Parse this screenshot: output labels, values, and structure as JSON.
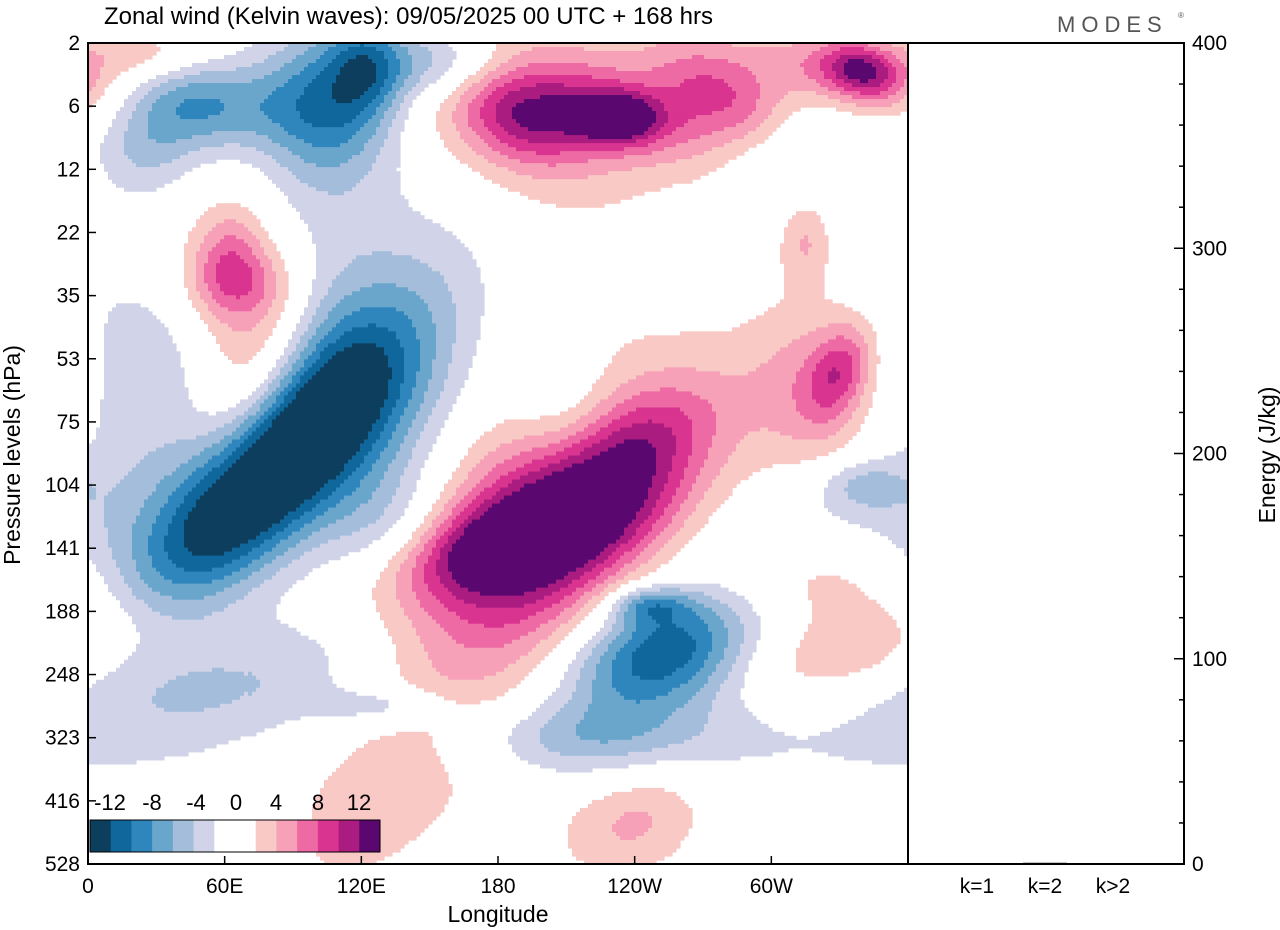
{
  "chart_data": {
    "type": "heatmap",
    "title": "Zonal wind (Kelvin waves):  09/05/2025  00 UTC  + 168 hrs",
    "brand": "MODES",
    "xlabel": "Longitude",
    "ylabel": "Pressure levels (hPa)",
    "y2label": "Energy (J/kg)",
    "x_ticks": [
      "0",
      "60E",
      "120E",
      "180",
      "120W",
      "60W"
    ],
    "y_ticks": [
      "2",
      "6",
      "12",
      "22",
      "35",
      "53",
      "75",
      "104",
      "141",
      "188",
      "248",
      "323",
      "416",
      "528"
    ],
    "y2_range": [
      0,
      400
    ],
    "y2_ticks": [
      "0",
      "100",
      "200",
      "300",
      "400"
    ],
    "bar_categories": [
      "k=1",
      "k=2",
      "k>2"
    ],
    "bar_values": [
      0.3,
      0.6,
      0.4
    ],
    "colorbar": {
      "labels": [
        "-12",
        "-8",
        "-4",
        "0",
        "4",
        "8",
        "12"
      ],
      "colors": [
        "#0d3e5e",
        "#0f679c",
        "#2e86bd",
        "#6aa6cc",
        "#a4bddb",
        "#d1d4e8",
        "#ffffff",
        "#ffffff",
        "#f9c9c6",
        "#f7a1b8",
        "#ee6aa4",
        "#d9348f",
        "#aa1c7f",
        "#5a0870"
      ]
    },
    "blobs": [
      {
        "lon": 80,
        "lev": 6.8,
        "rx": 15,
        "ry": 2.3,
        "rot": 55,
        "amp": -14
      },
      {
        "lon": 80,
        "lev": 6.0,
        "rx": 30,
        "ry": 4,
        "rot": 55,
        "amp": -5
      },
      {
        "lon": 76,
        "lev": 10.2,
        "rx": 14,
        "ry": 3,
        "rot": 80,
        "amp": -4
      },
      {
        "lon": 70,
        "lev": 5.4,
        "rx": 18,
        "ry": 1.2,
        "rot": 40,
        "amp": 9
      },
      {
        "lon": 95,
        "lev": 5.3,
        "rx": 65,
        "ry": 1.2,
        "rot": 12,
        "amp": -5
      },
      {
        "lon": 180,
        "lev": 9.4,
        "rx": 28,
        "ry": 4,
        "rot": 50,
        "amp": 5
      },
      {
        "lon": 190,
        "lev": 7.3,
        "rx": 36,
        "ry": 2,
        "rot": 30,
        "amp": 5
      },
      {
        "lon": 205,
        "lev": 7.8,
        "rx": 20,
        "ry": 2.5,
        "rot": 70,
        "amp": 7
      },
      {
        "lon": 188,
        "lev": 7.9,
        "rx": 9,
        "ry": 2,
        "rot": 80,
        "amp": 7
      },
      {
        "lon": 237,
        "lev": 6.5,
        "rx": 12,
        "ry": 1.5,
        "rot": 70,
        "amp": 6
      },
      {
        "lon": 213,
        "lev": 11,
        "rx": 8,
        "ry": 2,
        "rot": 90,
        "amp": -4
      },
      {
        "lon": 250,
        "lev": 9.4,
        "rx": 28,
        "ry": 3.3,
        "rot": 80,
        "amp": -6
      },
      {
        "lon": 254,
        "lev": 9.6,
        "rx": 12,
        "ry": 1.4,
        "rot": 80,
        "amp": -11
      },
      {
        "lon": 246,
        "lev": 8.9,
        "rx": 4,
        "ry": 0.6,
        "rot": 90,
        "amp": -6
      },
      {
        "lon": 210,
        "lev": 5.9,
        "rx": 18,
        "ry": 0.8,
        "rot": 25,
        "amp": -4
      },
      {
        "lon": 132,
        "lev": 7.7,
        "rx": 15,
        "ry": 1,
        "rot": 90,
        "amp": -4
      },
      {
        "lon": 285,
        "lev": 9.5,
        "rx": 14,
        "ry": 2.2,
        "rot": 90,
        "amp": 5
      },
      {
        "lon": 320,
        "lev": 8.5,
        "rx": 10,
        "ry": 2,
        "rot": 90,
        "amp": 5
      },
      {
        "lon": 350,
        "lev": 9.5,
        "rx": 10,
        "ry": 2,
        "rot": 80,
        "amp": 5
      },
      {
        "lon": 320,
        "lev": 5.5,
        "rx": 20,
        "ry": 1,
        "rot": 30,
        "amp": 5
      },
      {
        "lon": 330,
        "lev": 5.2,
        "rx": 8,
        "ry": 0.6,
        "rot": 40,
        "amp": 6
      },
      {
        "lon": 240,
        "lev": 12.3,
        "rx": 12,
        "ry": 1.2,
        "rot": 80,
        "amp": 5
      },
      {
        "lon": 65,
        "lev": 4,
        "rx": 25,
        "ry": 0.9,
        "rot": 30,
        "amp": 5
      },
      {
        "lon": 62,
        "lev": 3.3,
        "rx": 10,
        "ry": 0.6,
        "rot": 40,
        "amp": 4
      },
      {
        "lon": 340,
        "lev": 7,
        "rx": 6,
        "ry": 0.7,
        "rot": 90,
        "amp": -4
      },
      {
        "lon": 130,
        "lev": 10.5,
        "rx": 4,
        "ry": 1,
        "rot": 90,
        "amp": -4
      },
      {
        "lon": 60,
        "lev": 1,
        "rx": 28,
        "ry": 0.5,
        "rot": 0,
        "amp": -5
      },
      {
        "lon": 40,
        "lev": 1,
        "rx": 20,
        "ry": 0.5,
        "rot": 0,
        "amp": -4
      },
      {
        "lon": 100,
        "lev": 0.9,
        "rx": 18,
        "ry": 0.9,
        "rot": 70,
        "amp": -5
      },
      {
        "lon": 122,
        "lev": 0.4,
        "rx": 12,
        "ry": 0.6,
        "rot": 70,
        "amp": -7
      },
      {
        "lon": 152,
        "lev": 0.3,
        "rx": 22,
        "ry": 0.4,
        "rot": 0,
        "amp": -6
      },
      {
        "lon": 110,
        "lev": 1.2,
        "rx": 18,
        "ry": 1,
        "rot": 90,
        "amp": -4
      },
      {
        "lon": 25,
        "lev": 1.8,
        "rx": 15,
        "ry": 0.5,
        "rot": 0,
        "amp": -3.5
      },
      {
        "lon": 195,
        "lev": 1.1,
        "rx": 40,
        "ry": 1.2,
        "rot": 10,
        "amp": 5
      },
      {
        "lon": 190,
        "lev": 1.2,
        "rx": 20,
        "ry": 0.5,
        "rot": 10,
        "amp": 7
      },
      {
        "lon": 235,
        "lev": 1.1,
        "rx": 30,
        "ry": 0.5,
        "rot": 10,
        "amp": 7
      },
      {
        "lon": 232,
        "lev": 1.2,
        "rx": 12,
        "ry": 0.25,
        "rot": 0,
        "amp": 9
      },
      {
        "lon": 280,
        "lev": 0.8,
        "rx": 25,
        "ry": 0.5,
        "rot": 20,
        "amp": 7
      },
      {
        "lon": 330,
        "lev": 0.5,
        "rx": 30,
        "ry": 0.4,
        "rot": 10,
        "amp": 6
      },
      {
        "lon": 340,
        "lev": 0.4,
        "rx": 12,
        "ry": 0.3,
        "rot": 10,
        "amp": 8
      },
      {
        "lon": 20,
        "lev": 0.2,
        "rx": 20,
        "ry": 0.3,
        "rot": 0,
        "amp": 4
      },
      {
        "lon": 310,
        "lev": 1.7,
        "rx": 18,
        "ry": 0.6,
        "rot": 0,
        "amp": -3.5
      },
      {
        "lon": 68,
        "lev": 3.8,
        "rx": 15,
        "ry": 0.4,
        "rot": 0,
        "amp": 4
      },
      {
        "lon": 315,
        "lev": 3.1,
        "rx": 8,
        "ry": 0.5,
        "rot": 0,
        "amp": 4
      }
    ]
  }
}
